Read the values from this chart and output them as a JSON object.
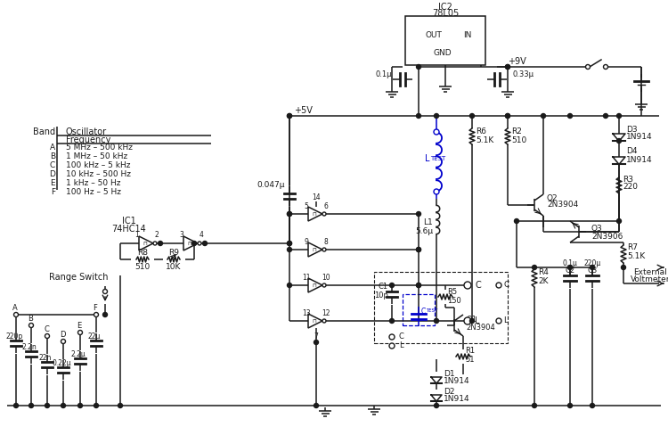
{
  "bg_color": "#ffffff",
  "line_color": "#1a1a1a",
  "blue_color": "#0000cc",
  "table_bands": [
    "A",
    "B",
    "C",
    "D",
    "E",
    "F"
  ],
  "table_freqs": [
    "5 MHz – 500 kHz",
    "1 MHz – 50 kHz",
    "100 kHz – 5 kHz",
    "10 kHz – 500 Hz",
    "1 kHz – 50 Hz",
    "100 Hz – 5 Hz"
  ]
}
